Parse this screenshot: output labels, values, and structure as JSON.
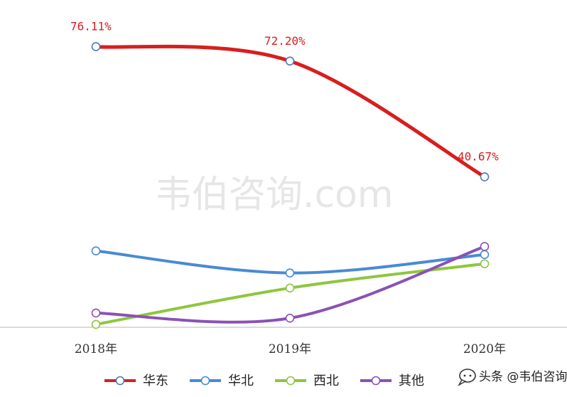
{
  "watermark": "韦伯咨询.com",
  "brand": {
    "text": "头条 @韦伯咨询",
    "icon": "chat-bubble-icon"
  },
  "chart_data": {
    "type": "line",
    "categories": [
      "2018年",
      "2019年",
      "2020年"
    ],
    "ylim": [
      0,
      80
    ],
    "grid": false,
    "legend_position": "bottom",
    "series": [
      {
        "name": "华东",
        "color": "#d81e1e",
        "values": [
          76.11,
          72.2,
          40.67
        ],
        "labels": [
          "76.11%",
          "72.20%",
          "40.67%"
        ]
      },
      {
        "name": "华北",
        "color": "#4a8ad4",
        "values": [
          20.5,
          14.5,
          19.5
        ],
        "labels": []
      },
      {
        "name": "西北",
        "color": "#8ec63f",
        "values": [
          0.5,
          10.4,
          17.0
        ],
        "labels": []
      },
      {
        "name": "其他",
        "color": "#8a52b3",
        "values": [
          3.6,
          2.2,
          21.7
        ],
        "labels": []
      }
    ]
  }
}
